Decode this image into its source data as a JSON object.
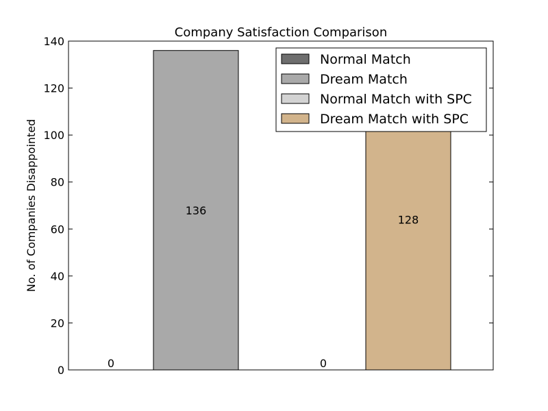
{
  "chart_data": {
    "type": "bar",
    "title": "Company Satisfaction Comparison",
    "xlabel": "",
    "ylabel": "No. of Companies Disappointed",
    "ylim": [
      0,
      140
    ],
    "yticks": [
      0,
      20,
      40,
      60,
      80,
      100,
      120,
      140
    ],
    "grid": false,
    "legend_position": "top-right",
    "series": [
      {
        "name": "Normal Match",
        "value": 0,
        "label": "0",
        "color": "#6e6e6e"
      },
      {
        "name": "Dream Match",
        "value": 136,
        "label": "136",
        "color": "#a9a9a9"
      },
      {
        "name": "Normal Match with SPC",
        "value": 0,
        "label": "0",
        "color": "#d3d3d3"
      },
      {
        "name": "Dream Match with SPC",
        "value": 128,
        "label": "128",
        "color": "#d2b48c"
      }
    ]
  }
}
